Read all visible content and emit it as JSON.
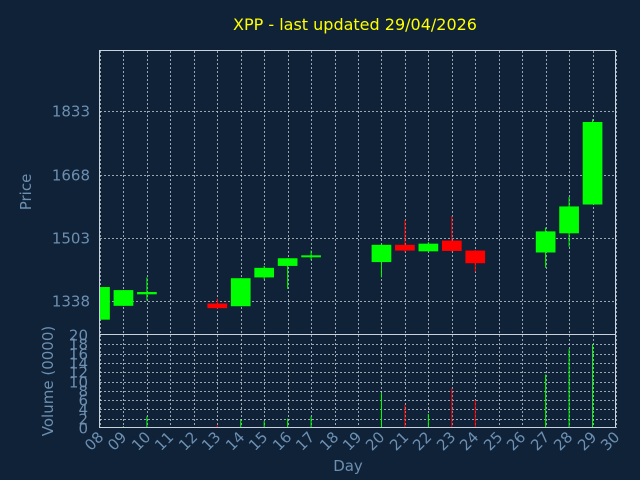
{
  "colors": {
    "background": "#0f2237",
    "text": "#6c8fb2",
    "title": "#ffff00",
    "up": "#00ff00",
    "down": "#ff0000",
    "grid": "#c9d2dc"
  },
  "chart_data": {
    "type": "candlestick",
    "title": "XPP - last updated 29/04/2026",
    "price_axis": {
      "label": "Price",
      "ticks": [
        1338,
        1503,
        1668,
        1833
      ],
      "range": [
        1250,
        1990
      ]
    },
    "volume_axis": {
      "label": "Volume (0000)",
      "ticks": [
        0,
        2,
        4,
        6,
        8,
        10,
        12,
        14,
        16,
        18,
        20
      ],
      "tick_labels": [
        "0",
        "2",
        "4",
        "6",
        "8",
        "10",
        "12",
        "14",
        "16",
        "18",
        "20"
      ],
      "range": [
        0,
        20
      ]
    },
    "x_axis": {
      "label": "Day",
      "ticks": [
        "08",
        "09",
        "10",
        "11",
        "12",
        "13",
        "14",
        "15",
        "16",
        "17",
        "18",
        "19",
        "20",
        "21",
        "22",
        "23",
        "24",
        "25",
        "26",
        "27",
        "28",
        "29",
        "30"
      ]
    },
    "grid": true,
    "candles": [
      {
        "day": 8,
        "open": 1290,
        "close": 1375,
        "high": 1375,
        "low": 1290,
        "volume": 0.3
      },
      {
        "day": 9,
        "open": 1326,
        "close": 1367,
        "high": 1367,
        "low": 1326,
        "volume": 0.4
      },
      {
        "day": 10,
        "open": 1356,
        "close": 1362,
        "high": 1400,
        "low": 1340,
        "volume": 2.5
      },
      {
        "day": 13,
        "open": 1332,
        "close": 1320,
        "high": 1345,
        "low": 1318,
        "volume": 0.6
      },
      {
        "day": 14,
        "open": 1325,
        "close": 1398,
        "high": 1398,
        "low": 1325,
        "volume": 1.8
      },
      {
        "day": 15,
        "open": 1400,
        "close": 1425,
        "high": 1430,
        "low": 1395,
        "volume": 1.5
      },
      {
        "day": 16,
        "open": 1430,
        "close": 1450,
        "high": 1450,
        "low": 1370,
        "volume": 2.0
      },
      {
        "day": 17,
        "open": 1453,
        "close": 1457,
        "high": 1470,
        "low": 1445,
        "volume": 2.5
      },
      {
        "day": 20,
        "open": 1440,
        "close": 1485,
        "high": 1487,
        "low": 1400,
        "volume": 7.5
      },
      {
        "day": 21,
        "open": 1485,
        "close": 1470,
        "high": 1550,
        "low": 1466,
        "volume": 5.0
      },
      {
        "day": 22,
        "open": 1468,
        "close": 1488,
        "high": 1492,
        "low": 1466,
        "volume": 3.0
      },
      {
        "day": 23,
        "open": 1496,
        "close": 1469,
        "high": 1560,
        "low": 1468,
        "volume": 8.5
      },
      {
        "day": 24,
        "open": 1470,
        "close": 1437,
        "high": 1472,
        "low": 1415,
        "volume": 6.0
      },
      {
        "day": 27,
        "open": 1465,
        "close": 1520,
        "high": 1530,
        "low": 1425,
        "volume": 11.5
      },
      {
        "day": 28,
        "open": 1515,
        "close": 1585,
        "high": 1610,
        "low": 1480,
        "volume": 17.0
      },
      {
        "day": 29,
        "open": 1590,
        "close": 1805,
        "high": 1812,
        "low": 1590,
        "volume": 18.0
      }
    ]
  }
}
